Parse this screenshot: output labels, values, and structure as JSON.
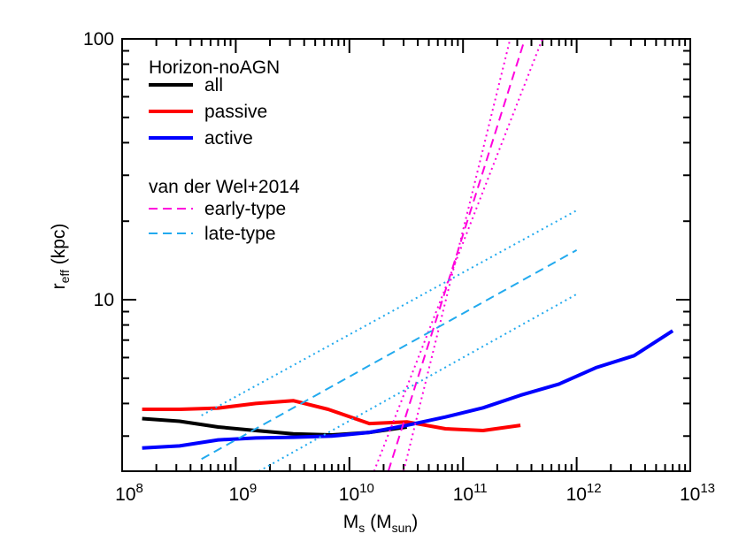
{
  "chart_data": {
    "type": "line",
    "title": "",
    "xlabel": {
      "main": "M",
      "sub": "s",
      "rest_open": " (M",
      "rest_sub": "sun",
      "rest_close": ")"
    },
    "ylabel": {
      "main": "r",
      "sub": "eff",
      "rest": " (kpc)"
    },
    "x_scale": "log",
    "y_scale": "log",
    "xlim": [
      100000000.0,
      10000000000000.0
    ],
    "ylim": [
      2.2,
      100
    ],
    "x_ticks": [
      {
        "value": 100000000.0,
        "base": "10",
        "exp": "8"
      },
      {
        "value": 1000000000.0,
        "base": "10",
        "exp": "9"
      },
      {
        "value": 10000000000.0,
        "base": "10",
        "exp": "10"
      },
      {
        "value": 100000000000.0,
        "base": "10",
        "exp": "11"
      },
      {
        "value": 1000000000000.0,
        "base": "10",
        "exp": "12"
      },
      {
        "value": 10000000000000.0,
        "base": "10",
        "exp": "13"
      }
    ],
    "y_ticks": [
      {
        "value": 10,
        "label": "10"
      },
      {
        "value": 100,
        "label": "100"
      }
    ],
    "legend": {
      "placement": "top-left",
      "group1_title": "Horizon-noAGN",
      "group2_title": "van der Wel+2014"
    },
    "series": [
      {
        "name": "all",
        "color": "#000000",
        "style": "solid",
        "x": [
          150000000.0,
          320000000.0,
          700000000.0,
          1500000000.0,
          3200000000.0,
          7000000000.0,
          15000000000.0,
          32000000000.0
        ],
        "y": [
          3.5,
          3.42,
          3.25,
          3.15,
          3.06,
          3.03,
          3.1,
          3.25
        ]
      },
      {
        "name": "passive",
        "color": "#ff0000",
        "style": "solid",
        "x": [
          150000000.0,
          320000000.0,
          700000000.0,
          1500000000.0,
          3200000000.0,
          6500000000.0,
          15000000000.0,
          32000000000.0,
          70000000000.0,
          150000000000.0,
          320000000000.0
        ],
        "y": [
          3.8,
          3.8,
          3.84,
          4.0,
          4.1,
          3.8,
          3.35,
          3.4,
          3.2,
          3.15,
          3.3
        ]
      },
      {
        "name": "active",
        "color": "#0000ff",
        "style": "solid",
        "x": [
          150000000.0,
          320000000.0,
          700000000.0,
          1500000000.0,
          3200000000.0,
          7000000000.0,
          15000000000.0,
          32000000000.0,
          70000000000.0,
          150000000000.0,
          320000000000.0,
          700000000000.0,
          1500000000000.0,
          3200000000000.0,
          7000000000000.0
        ],
        "y": [
          2.7,
          2.75,
          2.9,
          2.95,
          2.97,
          3.0,
          3.1,
          3.3,
          3.55,
          3.85,
          4.3,
          4.75,
          5.5,
          6.1,
          7.6
        ]
      },
      {
        "name": "early-type",
        "color": "#ff00dd",
        "style": "dashed",
        "x": [
          22000000000.0,
          350000000000.0
        ],
        "y": [
          2.2,
          100
        ]
      },
      {
        "name": "",
        "color": "#ff00dd",
        "style": "dotted",
        "x": [
          16500000000.0,
          500000000000.0
        ],
        "y": [
          2.2,
          100
        ]
      },
      {
        "name": "",
        "color": "#ff00dd",
        "style": "dotted",
        "x": [
          30000000000.0,
          260000000000.0
        ],
        "y": [
          2.2,
          100
        ]
      },
      {
        "name": "late-type",
        "color": "#22aaee",
        "style": "dashed",
        "x": [
          500000000.0,
          1000000000000.0
        ],
        "y": [
          2.45,
          15.5
        ]
      },
      {
        "name": "",
        "color": "#22aaee",
        "style": "dotted",
        "x": [
          500000000.0,
          1000000000000.0
        ],
        "y": [
          3.6,
          22
        ]
      },
      {
        "name": "",
        "color": "#22aaee",
        "style": "dotted",
        "x": [
          1600000000.0,
          1000000000000.0
        ],
        "y": [
          2.2,
          10.5
        ]
      }
    ]
  }
}
